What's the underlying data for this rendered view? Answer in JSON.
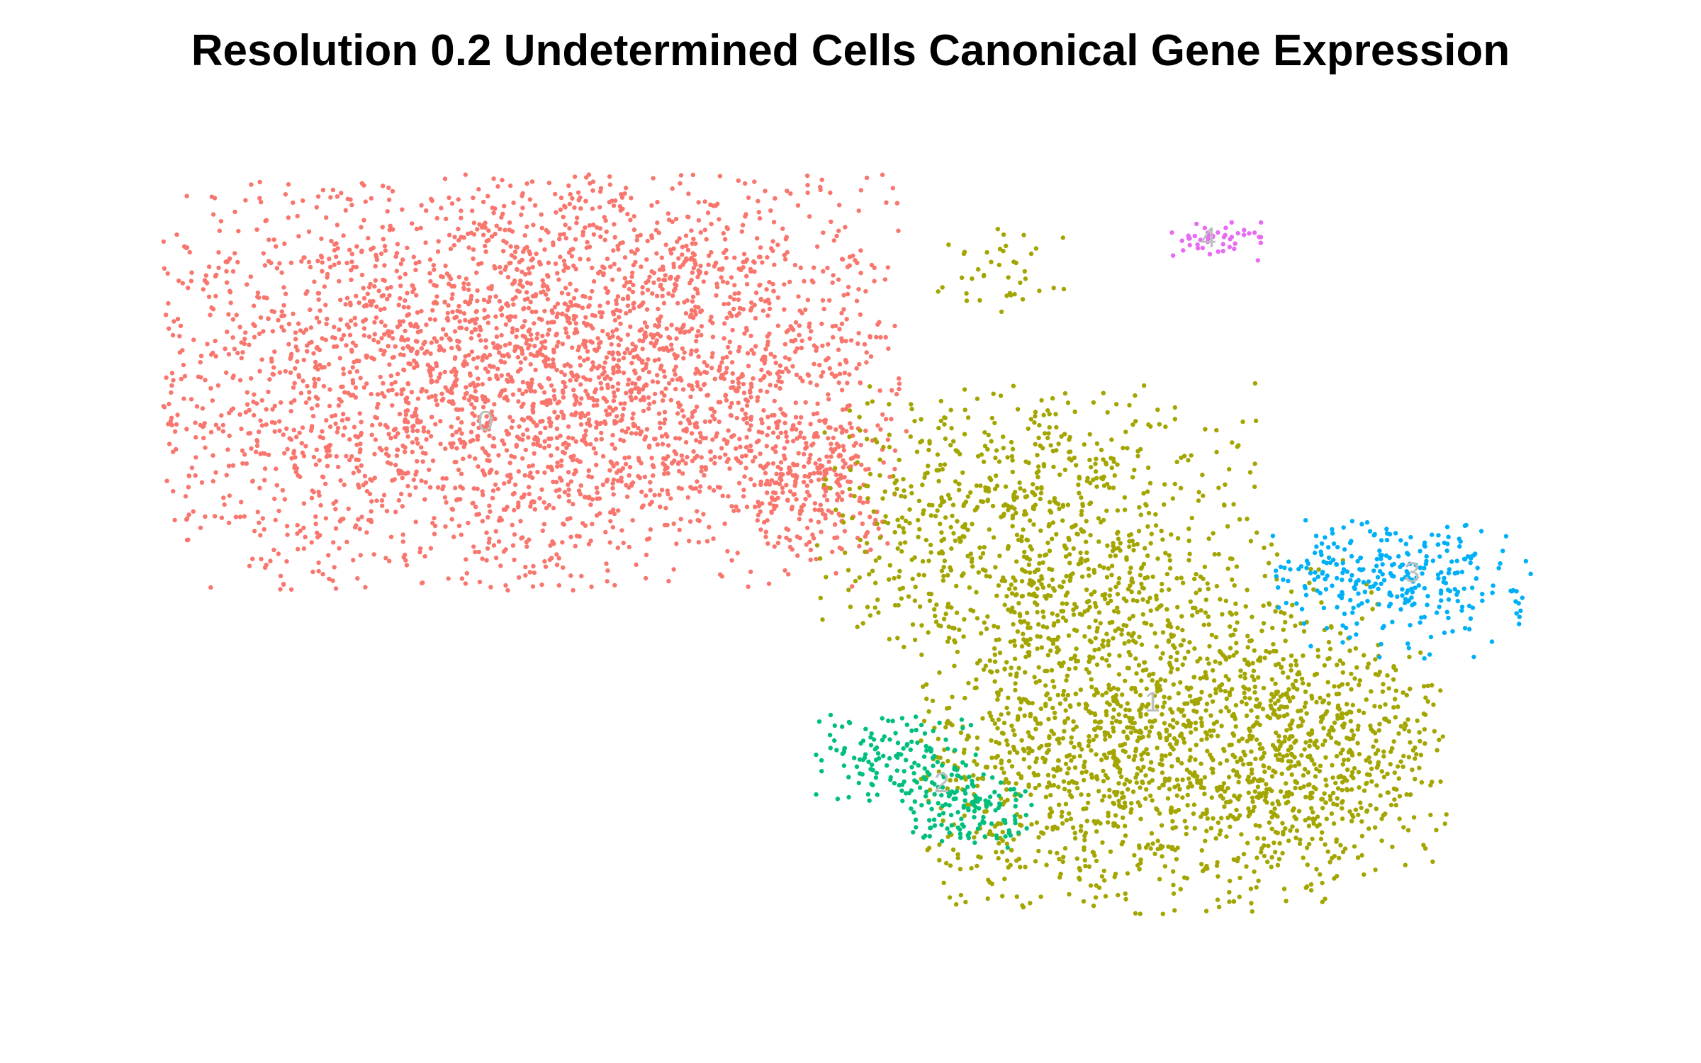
{
  "chart_data": {
    "type": "scatter",
    "title": "Resolution 0.2 Undetermined Cells Canonical Gene Expression",
    "xlabel": "",
    "ylabel": "",
    "grid": false,
    "legend": "none",
    "xlim": [
      -10.5,
      10.5
    ],
    "ylim": [
      -8.2,
      8.2
    ],
    "series": [
      {
        "name": "0",
        "color": "#F8766D",
        "label_at": [
          -5.2,
          2.6
        ],
        "regions": [
          {
            "cx": -5.3,
            "cy": 3.4,
            "sx": 2.9,
            "sy": 2.1,
            "n": 2600,
            "xmin": -9.8,
            "xmax": 0.7,
            "ymin": -0.5,
            "ymax": 7.2
          },
          {
            "cx": -2.5,
            "cy": 4.3,
            "sx": 1.8,
            "sy": 1.6,
            "n": 700,
            "xmin": -5.5,
            "xmax": 0.7,
            "ymin": 1.0,
            "ymax": 7.2
          },
          {
            "cx": -0.6,
            "cy": 1.6,
            "sx": 0.6,
            "sy": 0.8,
            "n": 250,
            "xmin": -1.8,
            "xmax": 0.8,
            "ymin": 0.2,
            "ymax": 3.0
          }
        ]
      },
      {
        "name": "1",
        "color": "#A3A500",
        "label_at": [
          4.3,
          -2.6
        ],
        "regions": [
          {
            "cx": 4.0,
            "cy": -3.3,
            "sx": 1.8,
            "sy": 1.8,
            "n": 1600,
            "xmin": 1.0,
            "xmax": 7.6,
            "ymin": -6.5,
            "ymax": 0.5
          },
          {
            "cx": 2.4,
            "cy": 0.8,
            "sx": 1.6,
            "sy": 1.3,
            "n": 750,
            "xmin": -0.5,
            "xmax": 5.8,
            "ymin": -1.6,
            "ymax": 3.4
          },
          {
            "cx": 6.8,
            "cy": -3.4,
            "sx": 1.0,
            "sy": 1.0,
            "n": 450,
            "xmin": 5.0,
            "xmax": 8.5,
            "ymin": -5.6,
            "ymax": -1.6
          },
          {
            "cx": 2.2,
            "cy": 5.3,
            "sx": 0.5,
            "sy": 0.5,
            "n": 40,
            "xmin": 1.2,
            "xmax": 3.2,
            "ymin": 4.4,
            "ymax": 6.2
          }
        ]
      },
      {
        "name": "2",
        "color": "#00BF7D",
        "label_at": [
          1.3,
          -4.1
        ],
        "regions": [
          {
            "cx": 0.7,
            "cy": -3.6,
            "sx": 0.8,
            "sy": 0.5,
            "n": 140,
            "xmin": -0.5,
            "xmax": 1.8,
            "ymin": -4.5,
            "ymax": -2.8
          },
          {
            "cx": 1.6,
            "cy": -4.6,
            "sx": 0.6,
            "sy": 0.4,
            "n": 130,
            "xmin": 0.8,
            "xmax": 2.6,
            "ymin": -5.3,
            "ymax": -3.9
          }
        ]
      },
      {
        "name": "3",
        "color": "#00B0F6",
        "label_at": [
          8.0,
          -0.2
        ],
        "regions": [
          {
            "cx": 7.7,
            "cy": -0.3,
            "sx": 1.0,
            "sy": 0.6,
            "n": 300,
            "xmin": 6.0,
            "xmax": 9.7,
            "ymin": -1.8,
            "ymax": 0.8
          }
        ]
      },
      {
        "name": "4",
        "color": "#E76BF3",
        "label_at": [
          5.1,
          6.0
        ],
        "regions": [
          {
            "cx": 5.1,
            "cy": 6.0,
            "sx": 0.4,
            "sy": 0.18,
            "n": 45,
            "xmin": 4.4,
            "xmax": 5.9,
            "ymin": 5.6,
            "ymax": 6.4
          }
        ]
      }
    ]
  }
}
